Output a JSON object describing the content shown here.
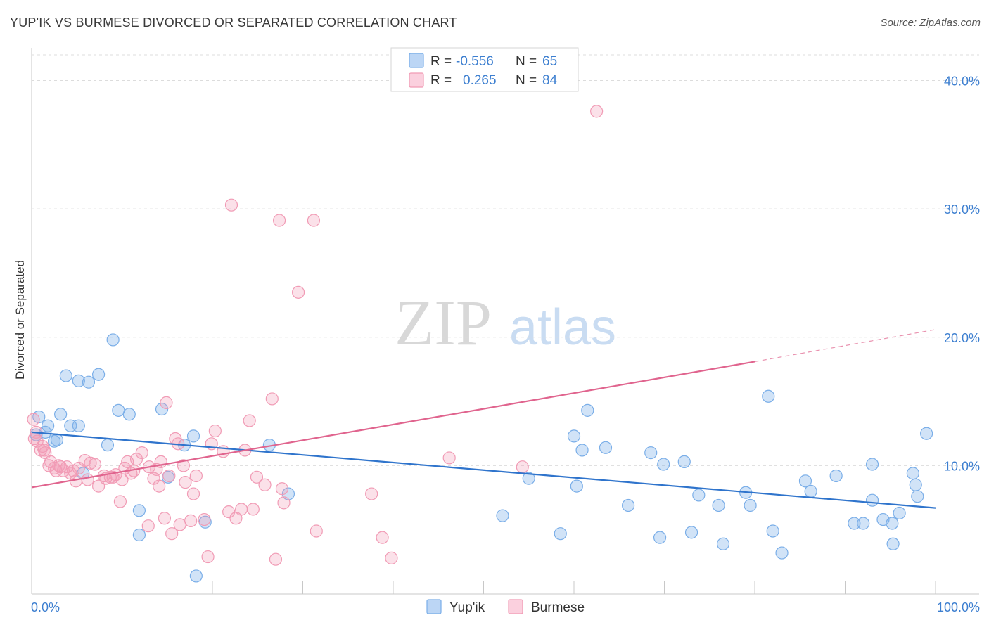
{
  "header": {
    "title": "YUP'IK VS BURMESE DIVORCED OR SEPARATED CORRELATION CHART",
    "source": "Source: ZipAtlas.com"
  },
  "watermark": {
    "zip": "ZIP",
    "atlas": "atlas"
  },
  "legend_top": {
    "rows": [
      {
        "r_label": "R =",
        "r_value": "-0.556",
        "n_label": "N =",
        "n_value": "65",
        "color": "#7aaee8"
      },
      {
        "r_label": "R =",
        "r_value": "0.265",
        "n_label": "N =",
        "n_value": "84",
        "color": "#f19bb5"
      }
    ]
  },
  "legend_bottom": {
    "items": [
      {
        "label": "Yup'ik",
        "color": "#7aaee8"
      },
      {
        "label": "Burmese",
        "color": "#f19bb5"
      }
    ]
  },
  "chart_data": {
    "type": "scatter",
    "title": "YUP'IK VS BURMESE DIVORCED OR SEPARATED CORRELATION CHART",
    "xlabel": "",
    "ylabel": "Divorced or Separated",
    "xlim": [
      0,
      100
    ],
    "ylim": [
      0,
      42
    ],
    "x_tick_labels": [
      "0.0%",
      "100.0%"
    ],
    "y_ticks": [
      10,
      20,
      30,
      40
    ],
    "y_tick_labels": [
      "10.0%",
      "20.0%",
      "30.0%",
      "40.0%"
    ],
    "grid": true,
    "legend_position": "top-center",
    "series": [
      {
        "name": "Yup'ik",
        "color": "#7aaee8",
        "line_color": "#2f74cc",
        "trend": {
          "x": [
            0,
            100
          ],
          "y": [
            12.6,
            6.7
          ]
        },
        "points": [
          [
            0.5,
            12.4
          ],
          [
            0.8,
            13.8
          ],
          [
            1.5,
            12.6
          ],
          [
            1.8,
            13.1
          ],
          [
            2.5,
            11.9
          ],
          [
            2.8,
            12.0
          ],
          [
            3.2,
            14.0
          ],
          [
            3.8,
            17.0
          ],
          [
            4.3,
            13.1
          ],
          [
            5.2,
            13.1
          ],
          [
            5.2,
            16.6
          ],
          [
            6.3,
            16.5
          ],
          [
            7.4,
            17.1
          ],
          [
            5.7,
            9.4
          ],
          [
            8.4,
            11.6
          ],
          [
            9.0,
            19.8
          ],
          [
            9.6,
            14.3
          ],
          [
            10.8,
            14.0
          ],
          [
            11.9,
            4.6
          ],
          [
            11.9,
            6.5
          ],
          [
            14.4,
            14.4
          ],
          [
            15.1,
            9.1
          ],
          [
            16.9,
            11.6
          ],
          [
            17.9,
            12.3
          ],
          [
            18.2,
            1.4
          ],
          [
            19.2,
            5.6
          ],
          [
            26.3,
            11.6
          ],
          [
            28.4,
            7.8
          ],
          [
            52.1,
            6.1
          ],
          [
            55.0,
            9.0
          ],
          [
            58.5,
            4.7
          ],
          [
            60.0,
            12.3
          ],
          [
            60.3,
            8.4
          ],
          [
            60.9,
            11.2
          ],
          [
            61.5,
            14.3
          ],
          [
            63.5,
            11.4
          ],
          [
            66.0,
            6.9
          ],
          [
            68.5,
            11.0
          ],
          [
            69.5,
            4.4
          ],
          [
            69.9,
            10.1
          ],
          [
            73.0,
            4.8
          ],
          [
            72.2,
            10.3
          ],
          [
            73.8,
            7.7
          ],
          [
            76.0,
            6.9
          ],
          [
            76.5,
            3.9
          ],
          [
            79.0,
            7.9
          ],
          [
            79.5,
            6.9
          ],
          [
            81.5,
            15.4
          ],
          [
            82.0,
            4.9
          ],
          [
            83.0,
            3.2
          ],
          [
            85.6,
            8.8
          ],
          [
            86.2,
            8.0
          ],
          [
            89.0,
            9.2
          ],
          [
            91.0,
            5.5
          ],
          [
            92.0,
            5.5
          ],
          [
            93.0,
            7.3
          ],
          [
            93.0,
            10.1
          ],
          [
            94.2,
            5.8
          ],
          [
            95.2,
            5.5
          ],
          [
            95.3,
            3.9
          ],
          [
            96.0,
            6.3
          ],
          [
            97.5,
            9.4
          ],
          [
            97.8,
            8.5
          ],
          [
            98.0,
            7.6
          ],
          [
            99.0,
            12.5
          ]
        ]
      },
      {
        "name": "Burmese",
        "color": "#f19bb5",
        "line_color": "#e0648e",
        "trend": {
          "x": [
            0,
            80
          ],
          "y": [
            8.3,
            18.1
          ],
          "dashed_to": {
            "x": 100,
            "y": 20.6
          }
        },
        "points": [
          [
            0.2,
            13.6
          ],
          [
            0.3,
            12.1
          ],
          [
            0.5,
            12.6
          ],
          [
            0.6,
            11.9
          ],
          [
            1.0,
            11.2
          ],
          [
            1.2,
            11.5
          ],
          [
            1.5,
            11.0
          ],
          [
            1.9,
            10.0
          ],
          [
            2.1,
            10.3
          ],
          [
            2.5,
            9.8
          ],
          [
            2.7,
            9.6
          ],
          [
            3.0,
            10.0
          ],
          [
            3.5,
            9.6
          ],
          [
            3.9,
            9.9
          ],
          [
            4.3,
            9.4
          ],
          [
            4.6,
            9.6
          ],
          [
            4.9,
            8.8
          ],
          [
            5.2,
            9.8
          ],
          [
            5.9,
            10.4
          ],
          [
            6.2,
            8.9
          ],
          [
            6.5,
            10.2
          ],
          [
            7.0,
            10.1
          ],
          [
            7.4,
            8.4
          ],
          [
            8.0,
            9.2
          ],
          [
            8.2,
            9.0
          ],
          [
            8.7,
            9.1
          ],
          [
            9.0,
            9.1
          ],
          [
            9.3,
            9.3
          ],
          [
            9.8,
            7.2
          ],
          [
            10.0,
            8.9
          ],
          [
            10.3,
            9.8
          ],
          [
            10.6,
            10.3
          ],
          [
            11.0,
            9.4
          ],
          [
            11.3,
            9.6
          ],
          [
            11.6,
            10.5
          ],
          [
            12.2,
            11.0
          ],
          [
            12.9,
            5.3
          ],
          [
            13.0,
            9.9
          ],
          [
            13.5,
            9.0
          ],
          [
            13.8,
            9.7
          ],
          [
            14.1,
            8.4
          ],
          [
            14.3,
            10.3
          ],
          [
            14.7,
            5.9
          ],
          [
            14.9,
            14.9
          ],
          [
            15.2,
            9.2
          ],
          [
            15.5,
            4.7
          ],
          [
            15.9,
            12.1
          ],
          [
            16.2,
            11.7
          ],
          [
            16.4,
            5.4
          ],
          [
            16.8,
            10.0
          ],
          [
            17.0,
            8.7
          ],
          [
            17.6,
            5.7
          ],
          [
            17.9,
            7.8
          ],
          [
            18.2,
            9.2
          ],
          [
            19.1,
            5.8
          ],
          [
            19.5,
            2.9
          ],
          [
            19.9,
            11.7
          ],
          [
            20.3,
            12.7
          ],
          [
            21.2,
            11.1
          ],
          [
            21.8,
            6.4
          ],
          [
            22.1,
            30.3
          ],
          [
            22.6,
            5.9
          ],
          [
            23.2,
            6.6
          ],
          [
            23.6,
            11.2
          ],
          [
            24.1,
            13.5
          ],
          [
            24.5,
            6.6
          ],
          [
            24.9,
            9.1
          ],
          [
            25.8,
            8.5
          ],
          [
            26.6,
            15.2
          ],
          [
            27.0,
            2.7
          ],
          [
            27.4,
            29.1
          ],
          [
            27.7,
            8.2
          ],
          [
            27.9,
            7.1
          ],
          [
            29.5,
            23.5
          ],
          [
            31.2,
            29.1
          ],
          [
            31.5,
            4.9
          ],
          [
            37.6,
            7.8
          ],
          [
            38.8,
            4.4
          ],
          [
            39.8,
            2.8
          ],
          [
            46.2,
            10.6
          ],
          [
            54.3,
            9.9
          ],
          [
            62.5,
            37.6
          ],
          [
            1.4,
            11.2
          ],
          [
            3.2,
            9.9
          ]
        ]
      }
    ]
  }
}
